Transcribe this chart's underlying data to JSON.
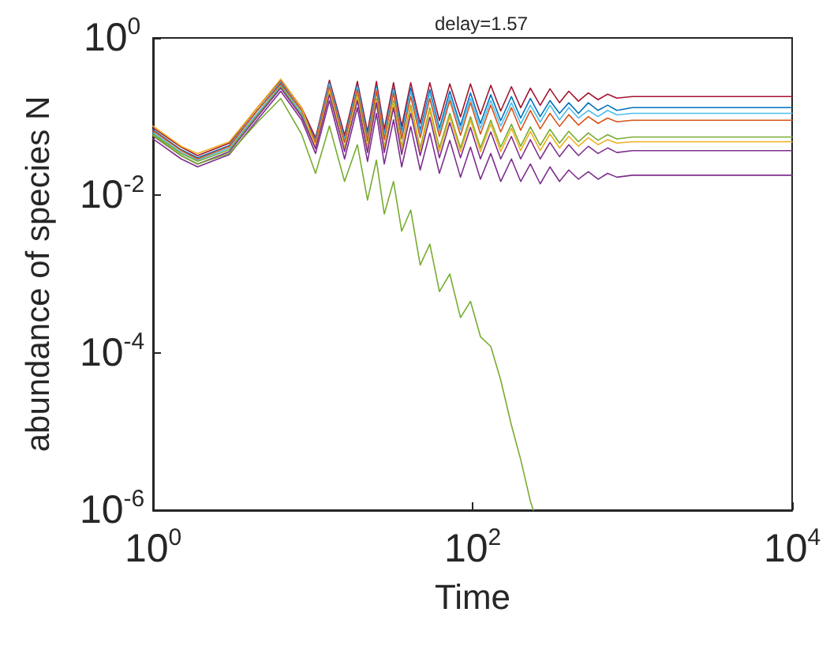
{
  "chart_data": {
    "type": "line",
    "title": "delay=1.57",
    "xlabel": "Time",
    "ylabel": "abundance of species N",
    "log": "xy",
    "grid": false,
    "marker": "none",
    "line_style": "solid",
    "xlim": [
      1,
      10000
    ],
    "xticks": [
      {
        "value": 1,
        "label": "10$^{0}$"
      },
      {
        "value": 100,
        "label": "10$^{2}$"
      },
      {
        "value": 10000,
        "label": "10$^{4}$"
      }
    ],
    "ylim": [
      1e-06,
      1
    ],
    "yticks": [
      {
        "value": 1e-06,
        "label": "10$^{-6}$"
      },
      {
        "value": 0.0001,
        "label": "10$^{-4}$"
      },
      {
        "value": 0.01,
        "label": "10$^{-2}$"
      },
      {
        "value": 1,
        "label": "10$^{0}$"
      }
    ],
    "x": [
      1,
      1.5,
      1.9,
      3,
      4.5,
      6.3,
      8.5,
      10.4,
      12.7,
      15.8,
      19,
      22,
      25,
      28,
      32,
      36,
      41,
      47,
      54,
      62,
      72,
      84,
      97,
      112,
      130,
      150,
      175,
      200,
      230,
      265,
      305,
      350,
      400,
      460,
      530,
      610,
      700,
      800,
      1000,
      10000
    ],
    "series": [
      {
        "color": "#a2142f",
        "values": [
          0.072,
          0.041,
          0.032,
          0.046,
          0.13,
          0.29,
          0.13,
          0.054,
          0.29,
          0.058,
          0.28,
          0.064,
          0.28,
          0.069,
          0.27,
          0.075,
          0.27,
          0.082,
          0.27,
          0.089,
          0.26,
          0.099,
          0.26,
          0.107,
          0.25,
          0.118,
          0.24,
          0.13,
          0.23,
          0.139,
          0.226,
          0.15,
          0.21,
          0.157,
          0.2,
          0.164,
          0.193,
          0.172,
          0.18,
          0.18
        ]
      },
      {
        "color": "#0072bd",
        "values": [
          0.068,
          0.038,
          0.03,
          0.043,
          0.12,
          0.27,
          0.12,
          0.05,
          0.27,
          0.052,
          0.25,
          0.057,
          0.24,
          0.06,
          0.23,
          0.064,
          0.23,
          0.067,
          0.22,
          0.071,
          0.21,
          0.077,
          0.2,
          0.082,
          0.19,
          0.089,
          0.18,
          0.096,
          0.17,
          0.1,
          0.16,
          0.11,
          0.15,
          0.11,
          0.15,
          0.12,
          0.14,
          0.12,
          0.13,
          0.13
        ]
      },
      {
        "color": "#4dbeee",
        "values": [
          0.063,
          0.035,
          0.028,
          0.04,
          0.11,
          0.25,
          0.11,
          0.049,
          0.26,
          0.05,
          0.24,
          0.053,
          0.23,
          0.056,
          0.22,
          0.058,
          0.21,
          0.061,
          0.2,
          0.064,
          0.18,
          0.068,
          0.17,
          0.071,
          0.16,
          0.076,
          0.15,
          0.081,
          0.14,
          0.085,
          0.14,
          0.091,
          0.13,
          0.096,
          0.12,
          0.1,
          0.12,
          0.105,
          0.11,
          0.11
        ]
      },
      {
        "color": "#d95319",
        "values": [
          0.066,
          0.037,
          0.029,
          0.042,
          0.12,
          0.26,
          0.12,
          0.047,
          0.24,
          0.047,
          0.22,
          0.049,
          0.21,
          0.051,
          0.2,
          0.052,
          0.18,
          0.054,
          0.17,
          0.056,
          0.16,
          0.058,
          0.15,
          0.06,
          0.14,
          0.064,
          0.13,
          0.067,
          0.12,
          0.07,
          0.11,
          0.075,
          0.106,
          0.078,
          0.1,
          0.082,
          0.096,
          0.086,
          0.09,
          0.09
        ]
      },
      {
        "color": "#77ac30",
        "values": [
          0.06,
          0.034,
          0.027,
          0.038,
          0.105,
          0.24,
          0.105,
          0.042,
          0.21,
          0.04,
          0.19,
          0.041,
          0.17,
          0.041,
          0.16,
          0.041,
          0.14,
          0.04,
          0.13,
          0.04,
          0.11,
          0.04,
          0.1,
          0.04,
          0.09,
          0.041,
          0.08,
          0.042,
          0.074,
          0.043,
          0.069,
          0.046,
          0.065,
          0.048,
          0.062,
          0.05,
          0.059,
          0.052,
          0.055,
          0.055
        ]
      },
      {
        "color": "#edb120",
        "values": [
          0.076,
          0.042,
          0.034,
          0.048,
          0.13,
          0.3,
          0.13,
          0.041,
          0.21,
          0.039,
          0.18,
          0.039,
          0.16,
          0.039,
          0.15,
          0.038,
          0.13,
          0.037,
          0.12,
          0.036,
          0.1,
          0.036,
          0.09,
          0.036,
          0.08,
          0.036,
          0.071,
          0.037,
          0.065,
          0.037,
          0.06,
          0.04,
          0.056,
          0.042,
          0.054,
          0.044,
          0.051,
          0.046,
          0.048,
          0.048
        ]
      },
      {
        "color": "#7e2f8e",
        "values": [
          0.057,
          0.032,
          0.025,
          0.036,
          0.1,
          0.23,
          0.1,
          0.039,
          0.19,
          0.036,
          0.16,
          0.035,
          0.15,
          0.035,
          0.13,
          0.033,
          0.11,
          0.032,
          0.098,
          0.03,
          0.084,
          0.03,
          0.073,
          0.029,
          0.064,
          0.029,
          0.056,
          0.029,
          0.051,
          0.029,
          0.047,
          0.031,
          0.044,
          0.032,
          0.042,
          0.034,
          0.04,
          0.035,
          0.037,
          0.037
        ]
      },
      {
        "color": "#7e2f8e",
        "values": [
          0.052,
          0.029,
          0.023,
          0.033,
          0.091,
          0.21,
          0.091,
          0.034,
          0.16,
          0.029,
          0.13,
          0.027,
          0.11,
          0.025,
          0.091,
          0.023,
          0.075,
          0.021,
          0.062,
          0.019,
          0.05,
          0.017,
          0.041,
          0.016,
          0.034,
          0.015,
          0.029,
          0.015,
          0.025,
          0.014,
          0.023,
          0.015,
          0.021,
          0.016,
          0.02,
          0.016,
          0.019,
          0.017,
          0.018,
          0.018
        ]
      },
      {
        "color": "#77ac30",
        "x": [
          1,
          1.5,
          1.9,
          3,
          4.5,
          6.3,
          8.5,
          10.4,
          12.7,
          15.8,
          19,
          22,
          25,
          28,
          32,
          36,
          41,
          47,
          54,
          62,
          72,
          84,
          97,
          112,
          130,
          150,
          175,
          200,
          230,
          240
        ],
        "values": [
          0.058,
          0.032,
          0.025,
          0.034,
          0.085,
          0.17,
          0.06,
          0.019,
          0.076,
          0.015,
          0.044,
          0.0087,
          0.028,
          0.0058,
          0.015,
          0.0035,
          0.0065,
          0.0013,
          0.0024,
          0.0006,
          0.001,
          0.00028,
          0.00045,
          0.00016,
          0.00012,
          4.5e-05,
          1.2e-05,
          4.4e-06,
          1.3e-06,
          1e-06
        ]
      }
    ]
  }
}
